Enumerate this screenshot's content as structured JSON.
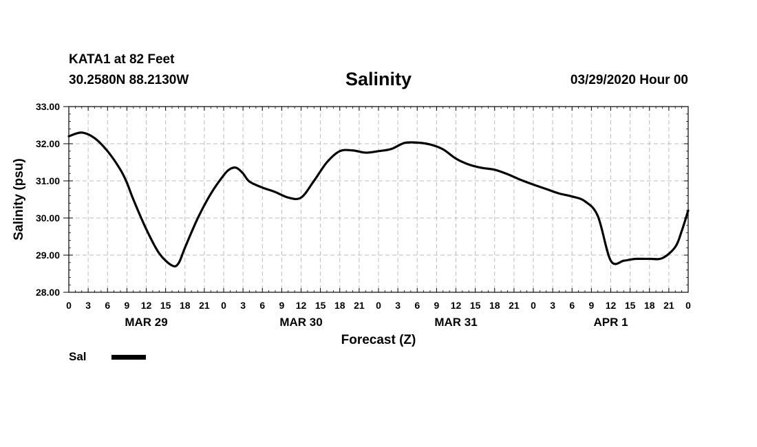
{
  "header": {
    "station": "KATA1 at 82 Feet",
    "latlon": "30.2580N 88.2130W",
    "datetime": "03/29/2020 Hour 00"
  },
  "colors": {
    "line": "#000000",
    "grid": "#bbbbbb",
    "axis": "#000000"
  },
  "chart_data": {
    "type": "line",
    "title": "Salinity",
    "xlabel": "Forecast (Z)",
    "ylabel": "Salinity (psu)",
    "ylim": [
      28.0,
      33.0
    ],
    "xlim_hours": [
      0,
      96
    ],
    "x_tick_labels": [
      "0",
      "3",
      "6",
      "9",
      "12",
      "15",
      "18",
      "21",
      "0",
      "3",
      "6",
      "9",
      "12",
      "15",
      "18",
      "21",
      "0",
      "3",
      "6",
      "9",
      "12",
      "15",
      "18",
      "21",
      "0",
      "3",
      "6",
      "9",
      "12",
      "15",
      "18",
      "21",
      "0"
    ],
    "y_tick_labels": [
      "28.00",
      "29.00",
      "30.00",
      "31.00",
      "32.00",
      "33.00"
    ],
    "y_tick_values": [
      28,
      29,
      30,
      31,
      32,
      33
    ],
    "date_labels": [
      {
        "label": "MAR 29",
        "hour": 12
      },
      {
        "label": "MAR 30",
        "hour": 36
      },
      {
        "label": "MAR 31",
        "hour": 60
      },
      {
        "label": "APR 1",
        "hour": 84
      }
    ],
    "grid": true,
    "legend": {
      "placement": "bottom-left",
      "entries": [
        "Sal"
      ]
    },
    "series": [
      {
        "name": "Sal",
        "x": [
          0,
          2,
          4,
          6,
          8,
          9,
          10,
          12,
          14,
          16,
          17,
          18,
          20,
          22,
          24,
          25,
          26,
          27,
          28,
          30,
          32,
          34,
          36,
          38,
          40,
          42,
          44,
          46,
          48,
          50,
          52,
          54,
          56,
          58,
          60,
          62,
          64,
          66,
          68,
          70,
          72,
          74,
          76,
          78,
          80,
          82,
          84,
          86,
          87,
          88,
          90,
          92,
          94,
          95,
          96
        ],
        "values": [
          32.2,
          32.3,
          32.15,
          31.8,
          31.3,
          30.95,
          30.5,
          29.7,
          29.05,
          28.72,
          28.78,
          29.2,
          30.0,
          30.65,
          31.15,
          31.32,
          31.35,
          31.2,
          30.98,
          30.82,
          30.7,
          30.55,
          30.55,
          31.0,
          31.5,
          31.8,
          31.82,
          31.76,
          31.8,
          31.86,
          32.02,
          32.03,
          31.98,
          31.85,
          31.6,
          31.44,
          31.35,
          31.3,
          31.18,
          31.03,
          30.9,
          30.78,
          30.66,
          30.58,
          30.45,
          30.05,
          28.85,
          28.85,
          28.88,
          28.9,
          28.9,
          28.92,
          29.22,
          29.65,
          30.2
        ]
      }
    ]
  }
}
